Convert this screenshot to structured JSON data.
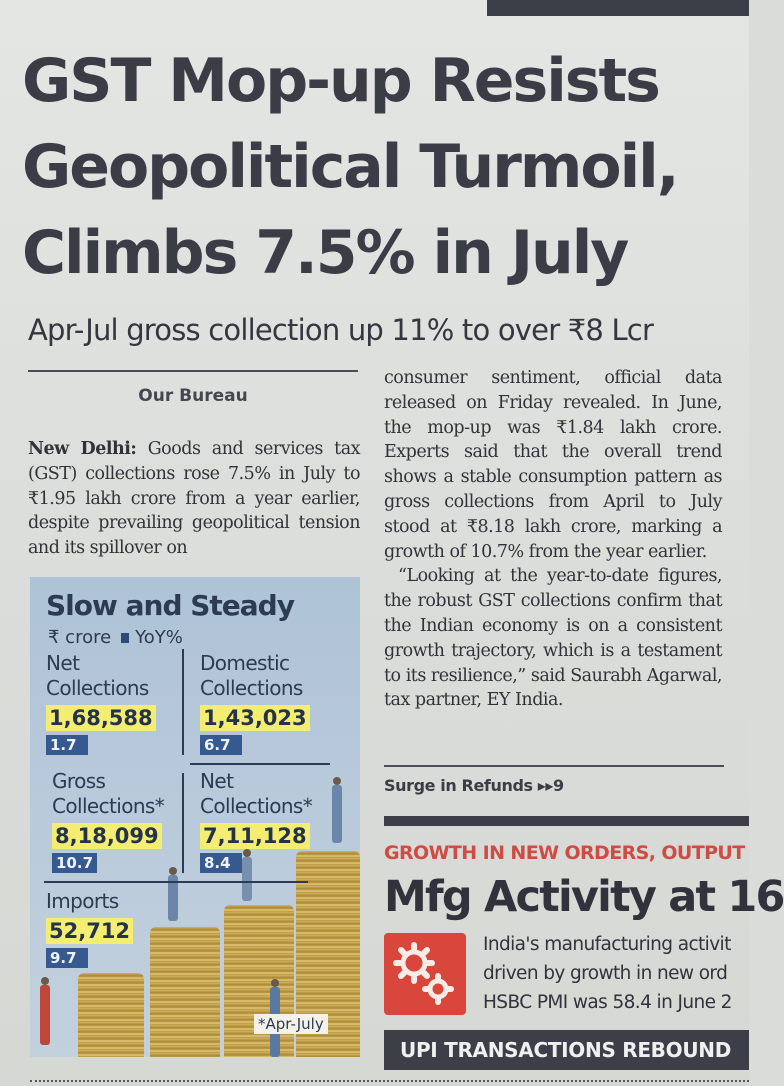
{
  "article": {
    "headline_lines": [
      "GST Mop-up Resists",
      "Geopolitical Turmoil,",
      "Climbs 7.5% in July"
    ],
    "subheadline": "Apr-Jul gross collection up 11% to over ₹8 Lcr",
    "byline": "Our Bureau",
    "dateline": "New Delhi:",
    "left_column_body": "Goods and services tax (GST) collections rose 7.5% in July to ₹1.95 lakh crore from a year earlier, despite prevailing geopolitical tension and its spillover on",
    "right_column_p1": "consumer sentiment, official data released on Friday revealed. In June, the mop-up was ₹1.84 lakh crore. Experts said that the overall trend shows a stable consumption pattern as gross collections from April to July stood at ₹8.18 lakh crore, marking a growth of 10.7% from the year earlier.",
    "right_column_p2": "“Looking at the year-to-date figures, the robust GST collections confirm that the Indian economy is on a consistent growth trajectory, which is a testament to its resilience,” said Saurabh Agarwal, tax partner, EY India.",
    "continuation": "Surge in Refunds ▸▸9"
  },
  "infographic": {
    "title": "Slow and Steady",
    "legend_crore": "₹ crore",
    "legend_yoy": "YoY%",
    "metrics": [
      {
        "label_lines": [
          "Net",
          "Collections"
        ],
        "value": "1,68,588",
        "yoy": "1.7"
      },
      {
        "label_lines": [
          "Domestic",
          "Collections"
        ],
        "value": "1,43,023",
        "yoy": "6.7"
      },
      {
        "label_lines": [
          "Gross",
          "Collections*"
        ],
        "value": "8,18,099",
        "yoy": "10.7"
      },
      {
        "label_lines": [
          "Net",
          "Collections*"
        ],
        "value": "7,11,128",
        "yoy": "8.4"
      },
      {
        "label_lines": [
          "Imports"
        ],
        "value": "52,712",
        "yoy": "9.7"
      }
    ],
    "footnote": "*Apr-July",
    "colors": {
      "background": "#b9cadb",
      "value_highlight": "#f3ee72",
      "yoy_badge": "#36598f",
      "coins": "#d3b25c"
    }
  },
  "next_story": {
    "kicker": "GROWTH IN NEW ORDERS, OUTPUT",
    "title": "Mfg Activity at 16",
    "icon": "gears-icon",
    "text_lines": [
      "India's manufacturing activit",
      "driven by growth in new ord",
      "HSBC PMI was 58.4 in June 2"
    ],
    "bottom_banner": "UPI TRANSACTIONS REBOUND"
  }
}
